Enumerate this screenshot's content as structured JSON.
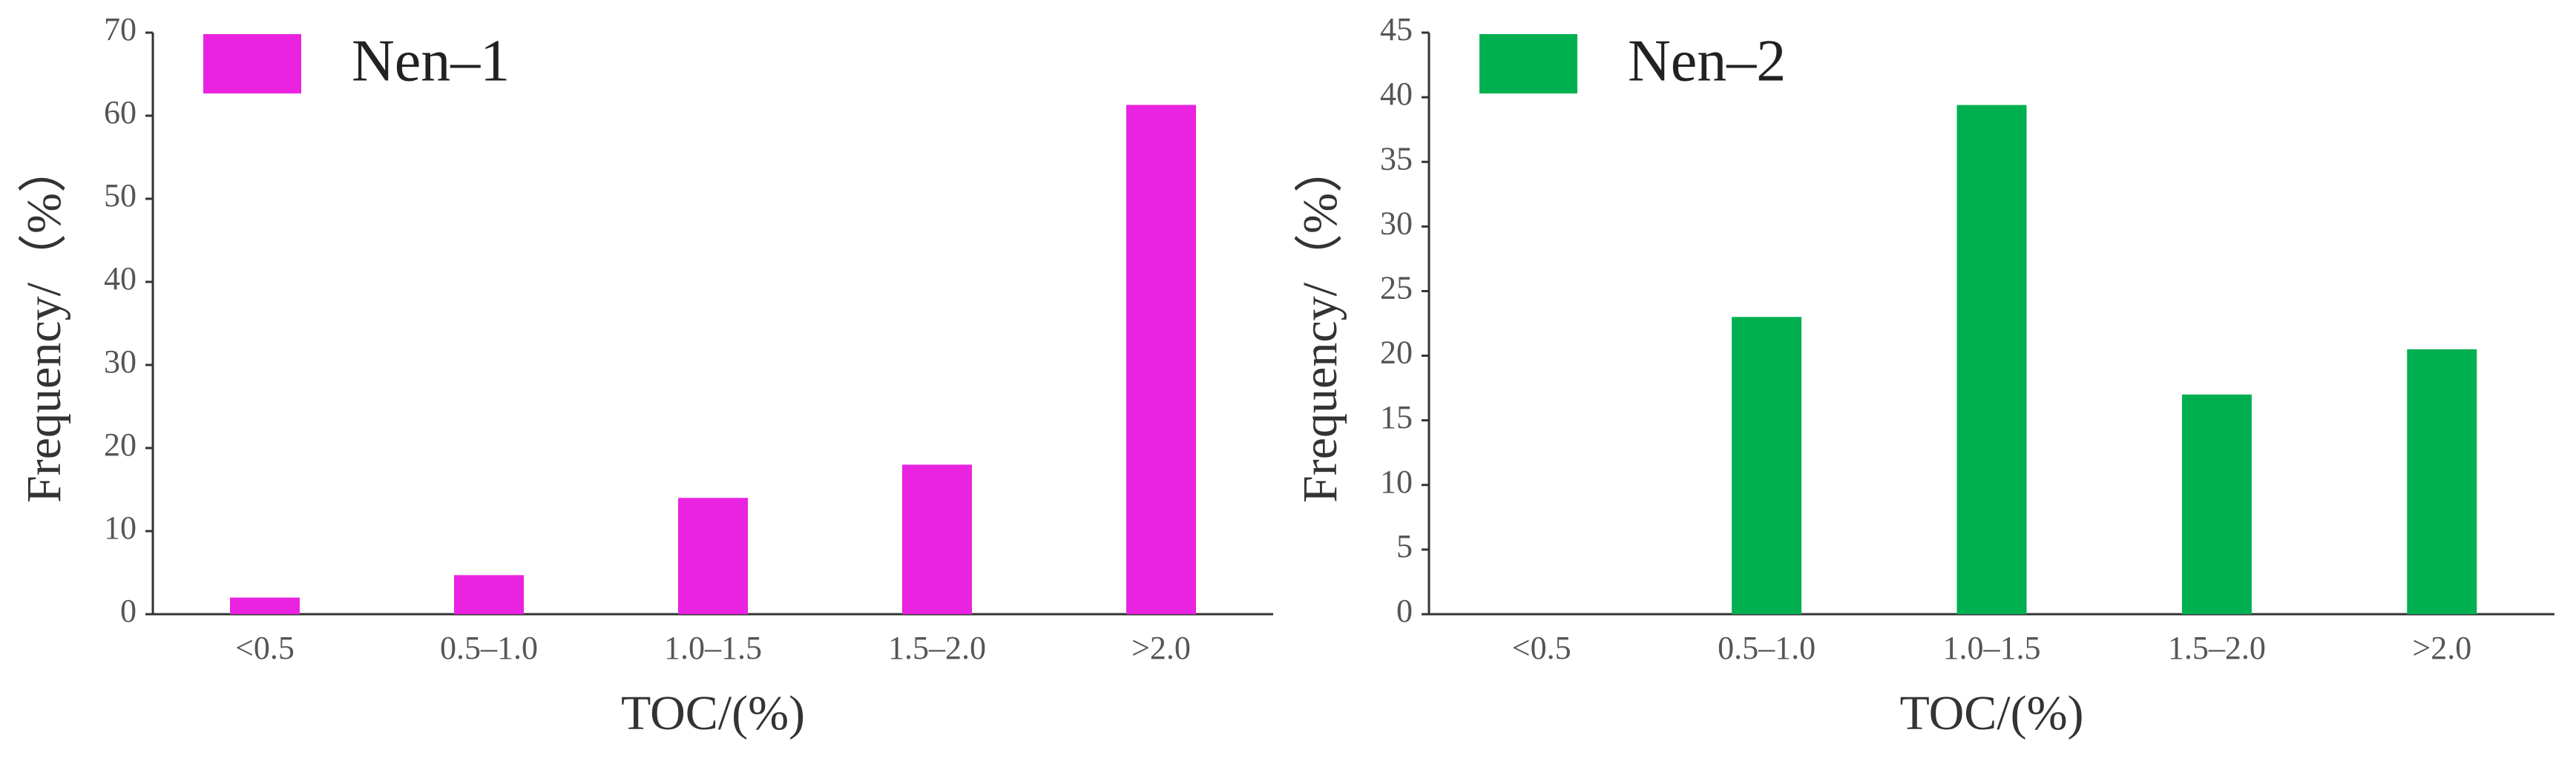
{
  "chart_data": [
    {
      "type": "bar",
      "ylabel": "Frequency/（%）",
      "xlabel": "TOC/(%)",
      "categories": [
        "<0.5",
        "0.5–1.0",
        "1.0–1.5",
        "1.5–2.0",
        ">2.0"
      ],
      "series": [
        {
          "name": "Nen–1",
          "color": "#e923e0",
          "values": [
            2,
            4.7,
            14,
            18,
            61.3
          ]
        }
      ],
      "ylim": [
        0,
        70
      ],
      "yticks": [
        0,
        10,
        20,
        30,
        40,
        50,
        60,
        70
      ],
      "legend": "upper left"
    },
    {
      "type": "bar",
      "ylabel": "Frequency/（%）",
      "xlabel": "TOC/(%)",
      "categories": [
        "<0.5",
        "0.5–1.0",
        "1.0–1.5",
        "1.5–2.0",
        ">2.0"
      ],
      "series": [
        {
          "name": "Nen–2",
          "color": "#00b050",
          "values": [
            0,
            23,
            39.4,
            17,
            20.5
          ]
        }
      ],
      "ylim": [
        0,
        45
      ],
      "yticks": [
        0,
        5,
        10,
        15,
        20,
        25,
        30,
        35,
        40,
        45
      ],
      "legend": "upper left"
    }
  ]
}
